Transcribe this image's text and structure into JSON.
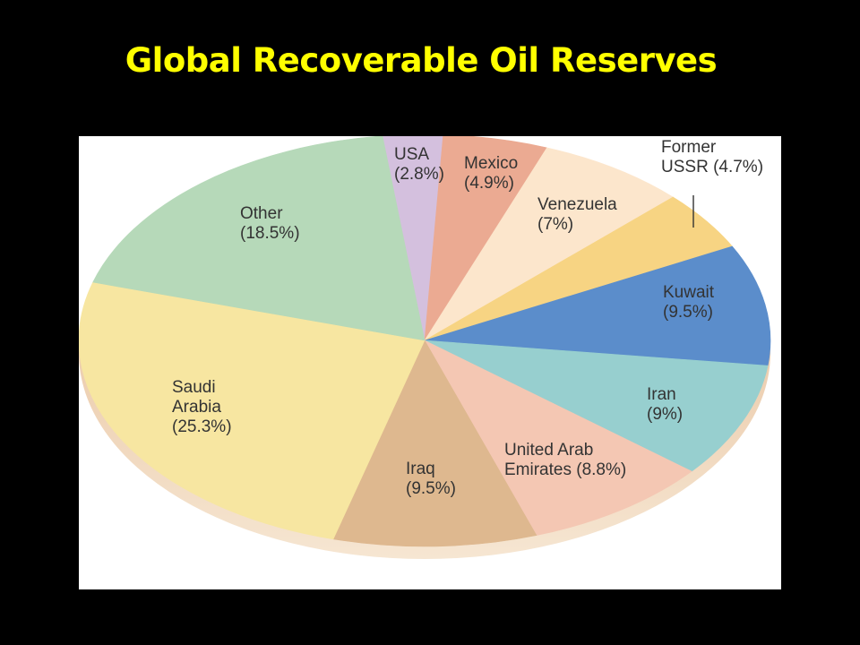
{
  "slide": {
    "title": "Global Recoverable Oil Reserves"
  },
  "colors": {
    "background": "#000000",
    "title": "#FFFF00",
    "panel": "#FFFFFF"
  },
  "chart_data": {
    "type": "pie",
    "title": "Global Recoverable Oil Reserves",
    "unit": "%",
    "slices": [
      {
        "label": "USA",
        "display": [
          "USA",
          "(2.8%)"
        ],
        "value": 2.8,
        "color": "#D4C0DE"
      },
      {
        "label": "Mexico",
        "display": [
          "Mexico",
          "(4.9%)"
        ],
        "value": 4.9,
        "color": "#EBAA92"
      },
      {
        "label": "Venezuela",
        "display": [
          "Venezuela",
          "(7%)"
        ],
        "value": 7,
        "color": "#FCE6CC"
      },
      {
        "label": "Former USSR",
        "display": [
          "Former",
          "USSR (4.7%)"
        ],
        "value": 4.7,
        "color": "#F7D483"
      },
      {
        "label": "Kuwait",
        "display": [
          "Kuwait",
          "(9.5%)"
        ],
        "value": 9.5,
        "color": "#5B8DCB"
      },
      {
        "label": "Iran",
        "display": [
          "Iran",
          "(9%)"
        ],
        "value": 9,
        "color": "#97CFCF"
      },
      {
        "label": "United Arab Emirates",
        "display": [
          "United Arab",
          "Emirates (8.8%)"
        ],
        "value": 8.8,
        "color": "#F4C7B3"
      },
      {
        "label": "Iraq",
        "display": [
          "Iraq",
          "(9.5%)"
        ],
        "value": 9.5,
        "color": "#DEB88F"
      },
      {
        "label": "Saudi Arabia",
        "display": [
          "Saudi",
          "Arabia",
          "(25.3%)"
        ],
        "value": 25.3,
        "color": "#F7E6A1"
      },
      {
        "label": "Other",
        "display": [
          "Other",
          "(18.5%)"
        ],
        "value": 18.5,
        "color": "#B6D9B9"
      }
    ]
  }
}
